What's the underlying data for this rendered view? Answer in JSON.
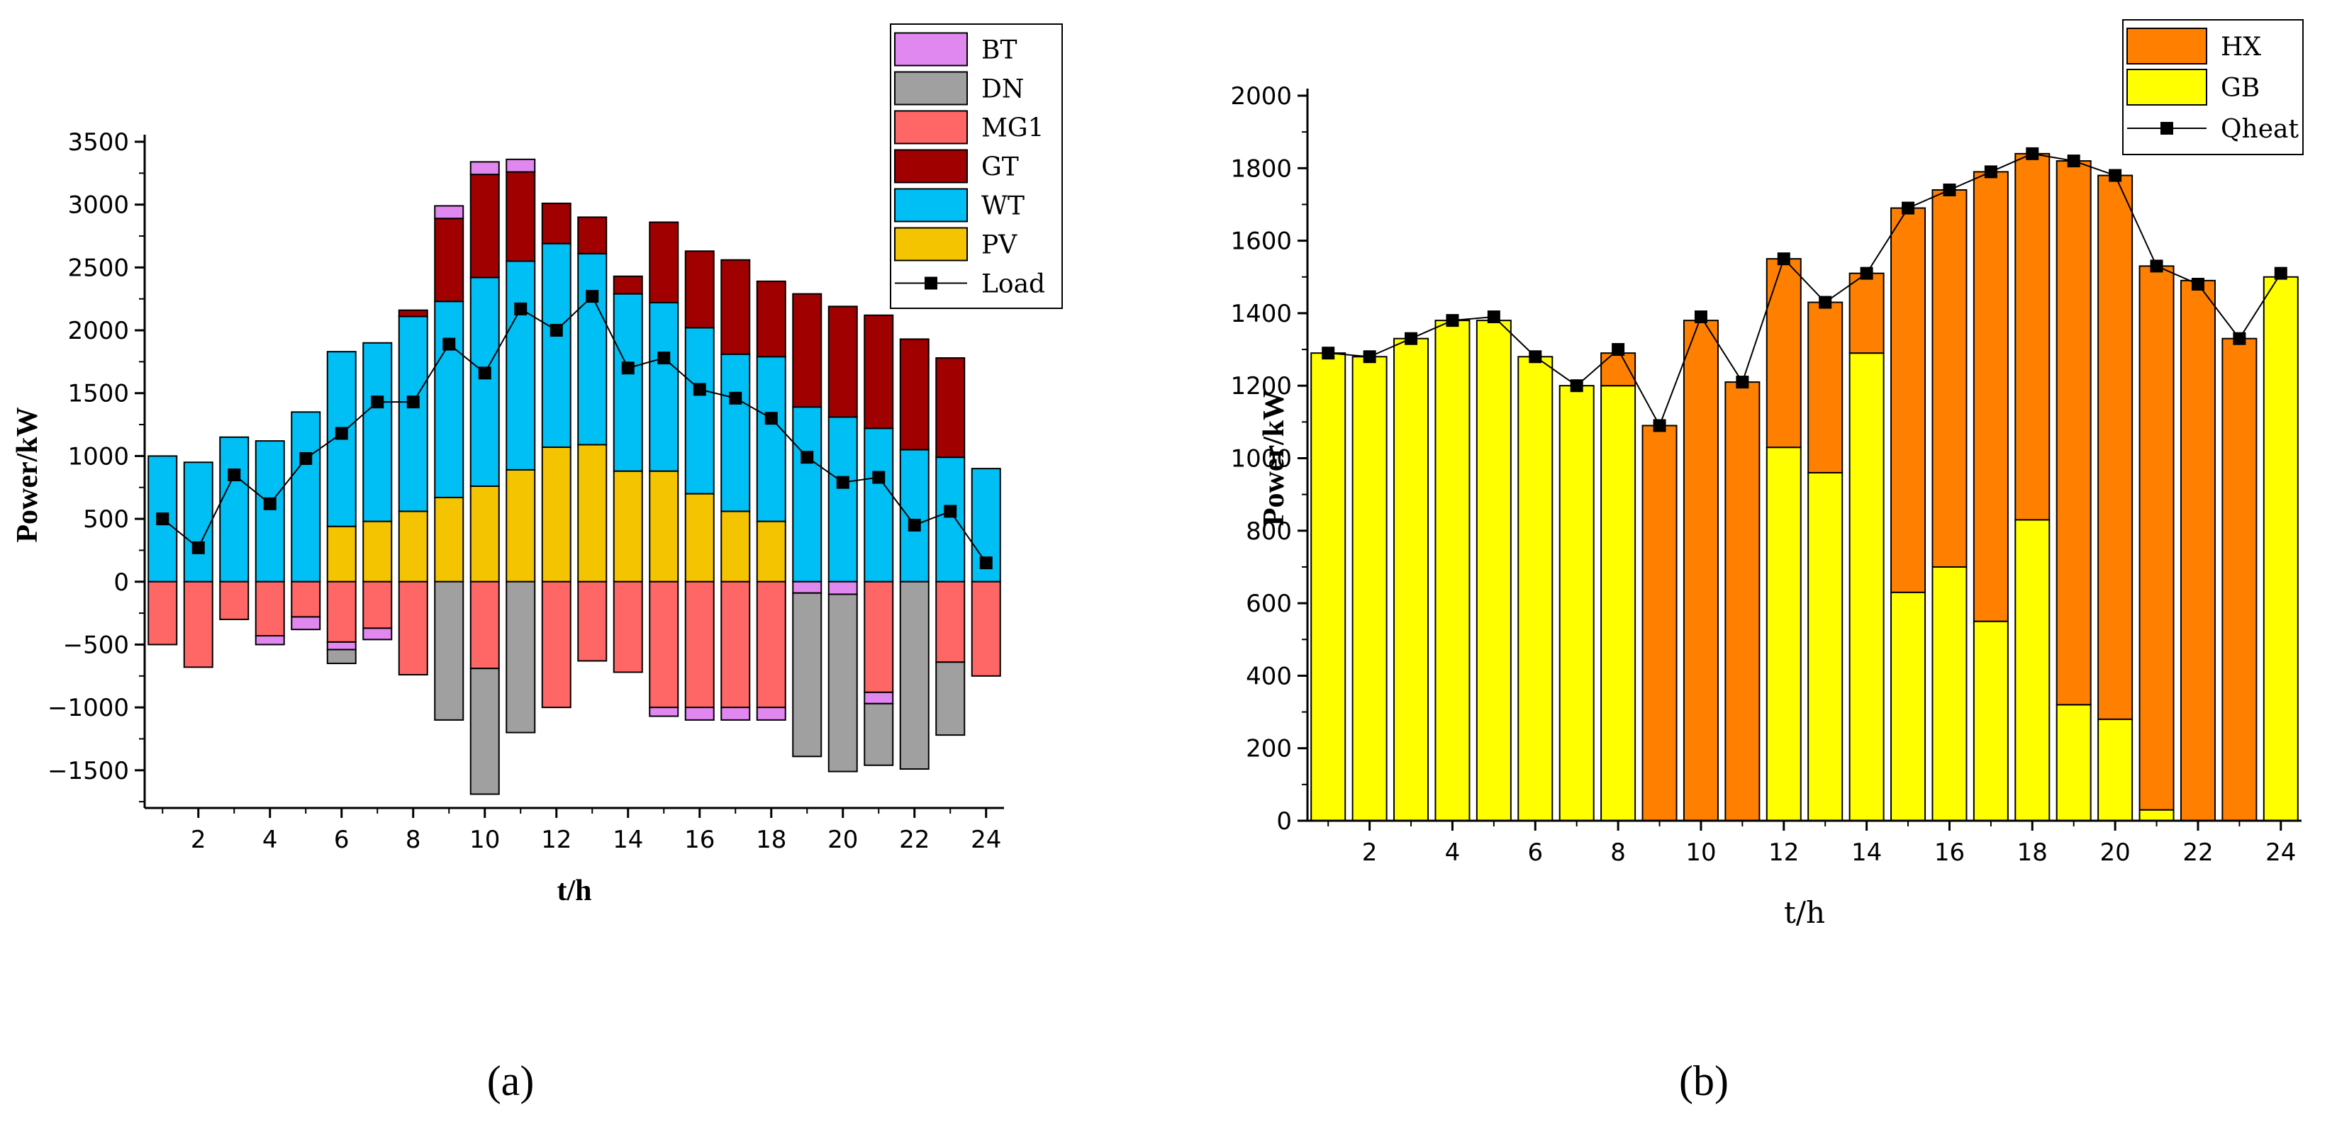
{
  "panels": {
    "a": {
      "label": "(a)"
    },
    "b": {
      "label": "(b)"
    }
  },
  "chart_data": [
    {
      "id": "a",
      "type": "bar",
      "stacked": true,
      "title": "",
      "xlabel": "t/h",
      "ylabel": "Power/kW",
      "x": [
        1,
        2,
        3,
        4,
        5,
        6,
        7,
        8,
        9,
        10,
        11,
        12,
        13,
        14,
        15,
        16,
        17,
        18,
        19,
        20,
        21,
        22,
        23,
        24
      ],
      "xticks": [
        2,
        4,
        6,
        8,
        10,
        12,
        14,
        16,
        18,
        20,
        22,
        24
      ],
      "ylim": [
        -1800,
        3500
      ],
      "yticks": [
        -1500,
        -1000,
        -500,
        0,
        500,
        1000,
        1500,
        2000,
        2500,
        3000,
        3500
      ],
      "legend_position": "top-right",
      "legend_order": [
        "BT",
        "DN",
        "MG1",
        "GT",
        "WT",
        "PV",
        "Load"
      ],
      "positive_stack_order": [
        "PV",
        "WT",
        "GT",
        "MG1",
        "DN",
        "BT"
      ],
      "negative_stack_order": [
        "MG1",
        "BT",
        "DN"
      ],
      "series": [
        {
          "name": "PV",
          "color": "#F5C400",
          "values": [
            0,
            0,
            0,
            0,
            0,
            440,
            480,
            560,
            670,
            760,
            890,
            1070,
            1090,
            880,
            880,
            700,
            560,
            480,
            0,
            0,
            0,
            0,
            0,
            0
          ]
        },
        {
          "name": "WT",
          "color": "#00BFF5",
          "values": [
            1000,
            950,
            1150,
            1120,
            1350,
            1390,
            1420,
            1550,
            1560,
            1660,
            1660,
            1620,
            1520,
            1410,
            1340,
            1320,
            1250,
            1310,
            1390,
            1310,
            1220,
            1050,
            990,
            900
          ]
        },
        {
          "name": "GT",
          "color": "#A00000",
          "values": [
            0,
            0,
            0,
            0,
            0,
            0,
            0,
            50,
            660,
            820,
            710,
            320,
            290,
            140,
            640,
            610,
            750,
            600,
            900,
            880,
            900,
            880,
            790,
            0
          ]
        },
        {
          "name": "MG1",
          "color": "#FF6666",
          "values": [
            -500,
            -680,
            -300,
            -430,
            -280,
            -480,
            -370,
            -740,
            0,
            -690,
            0,
            -1000,
            -630,
            -720,
            -1000,
            -1000,
            -1000,
            -1000,
            0,
            0,
            -880,
            0,
            -640,
            -750
          ]
        },
        {
          "name": "BT",
          "color": "#E088F0",
          "values": [
            0,
            0,
            0,
            -70,
            -100,
            -60,
            -90,
            0,
            100,
            100,
            100,
            0,
            0,
            0,
            -70,
            -100,
            -100,
            -100,
            -90,
            -100,
            -90,
            0,
            0,
            0
          ]
        },
        {
          "name": "DN",
          "color": "#A0A0A0",
          "values": [
            0,
            0,
            0,
            0,
            0,
            -110,
            0,
            0,
            -1100,
            -1000,
            -1200,
            0,
            0,
            0,
            0,
            0,
            0,
            0,
            -1300,
            -1410,
            -490,
            -1490,
            -580,
            0
          ]
        },
        {
          "name": "Load",
          "type": "line",
          "color": "#000000",
          "values": [
            500,
            270,
            850,
            620,
            980,
            1180,
            1430,
            1430,
            1890,
            1660,
            2170,
            2000,
            2270,
            1700,
            1780,
            1530,
            1460,
            1300,
            990,
            790,
            830,
            450,
            560,
            150
          ]
        }
      ]
    },
    {
      "id": "b",
      "type": "bar",
      "stacked": true,
      "title": "",
      "xlabel": "t/h",
      "ylabel": "Power/kW",
      "x": [
        1,
        2,
        3,
        4,
        5,
        6,
        7,
        8,
        9,
        10,
        11,
        12,
        13,
        14,
        15,
        16,
        17,
        18,
        19,
        20,
        21,
        22,
        23,
        24
      ],
      "xticks": [
        2,
        4,
        6,
        8,
        10,
        12,
        14,
        16,
        18,
        20,
        22,
        24
      ],
      "ylim": [
        0,
        2000
      ],
      "yticks": [
        0,
        200,
        400,
        600,
        800,
        1000,
        1200,
        1400,
        1600,
        1800,
        2000
      ],
      "legend_position": "top-right",
      "legend_order": [
        "HX",
        "GB",
        "Qheat"
      ],
      "positive_stack_order": [
        "GB",
        "HX"
      ],
      "series": [
        {
          "name": "GB",
          "color": "#FFFF00",
          "values": [
            1290,
            1280,
            1330,
            1380,
            1380,
            1280,
            1200,
            1200,
            0,
            0,
            0,
            1030,
            960,
            1290,
            630,
            700,
            550,
            830,
            320,
            280,
            30,
            0,
            0,
            1500
          ]
        },
        {
          "name": "HX",
          "color": "#FF8000",
          "values": [
            0,
            0,
            0,
            0,
            0,
            0,
            0,
            90,
            1090,
            1380,
            1210,
            520,
            470,
            220,
            1060,
            1040,
            1240,
            1010,
            1500,
            1500,
            1500,
            1490,
            1330,
            0
          ]
        },
        {
          "name": "Qheat",
          "type": "line",
          "color": "#000000",
          "values": [
            1290,
            1280,
            1330,
            1380,
            1390,
            1280,
            1200,
            1300,
            1090,
            1390,
            1210,
            1550,
            1430,
            1510,
            1690,
            1740,
            1790,
            1840,
            1820,
            1780,
            1530,
            1480,
            1330,
            1510
          ]
        }
      ]
    }
  ]
}
